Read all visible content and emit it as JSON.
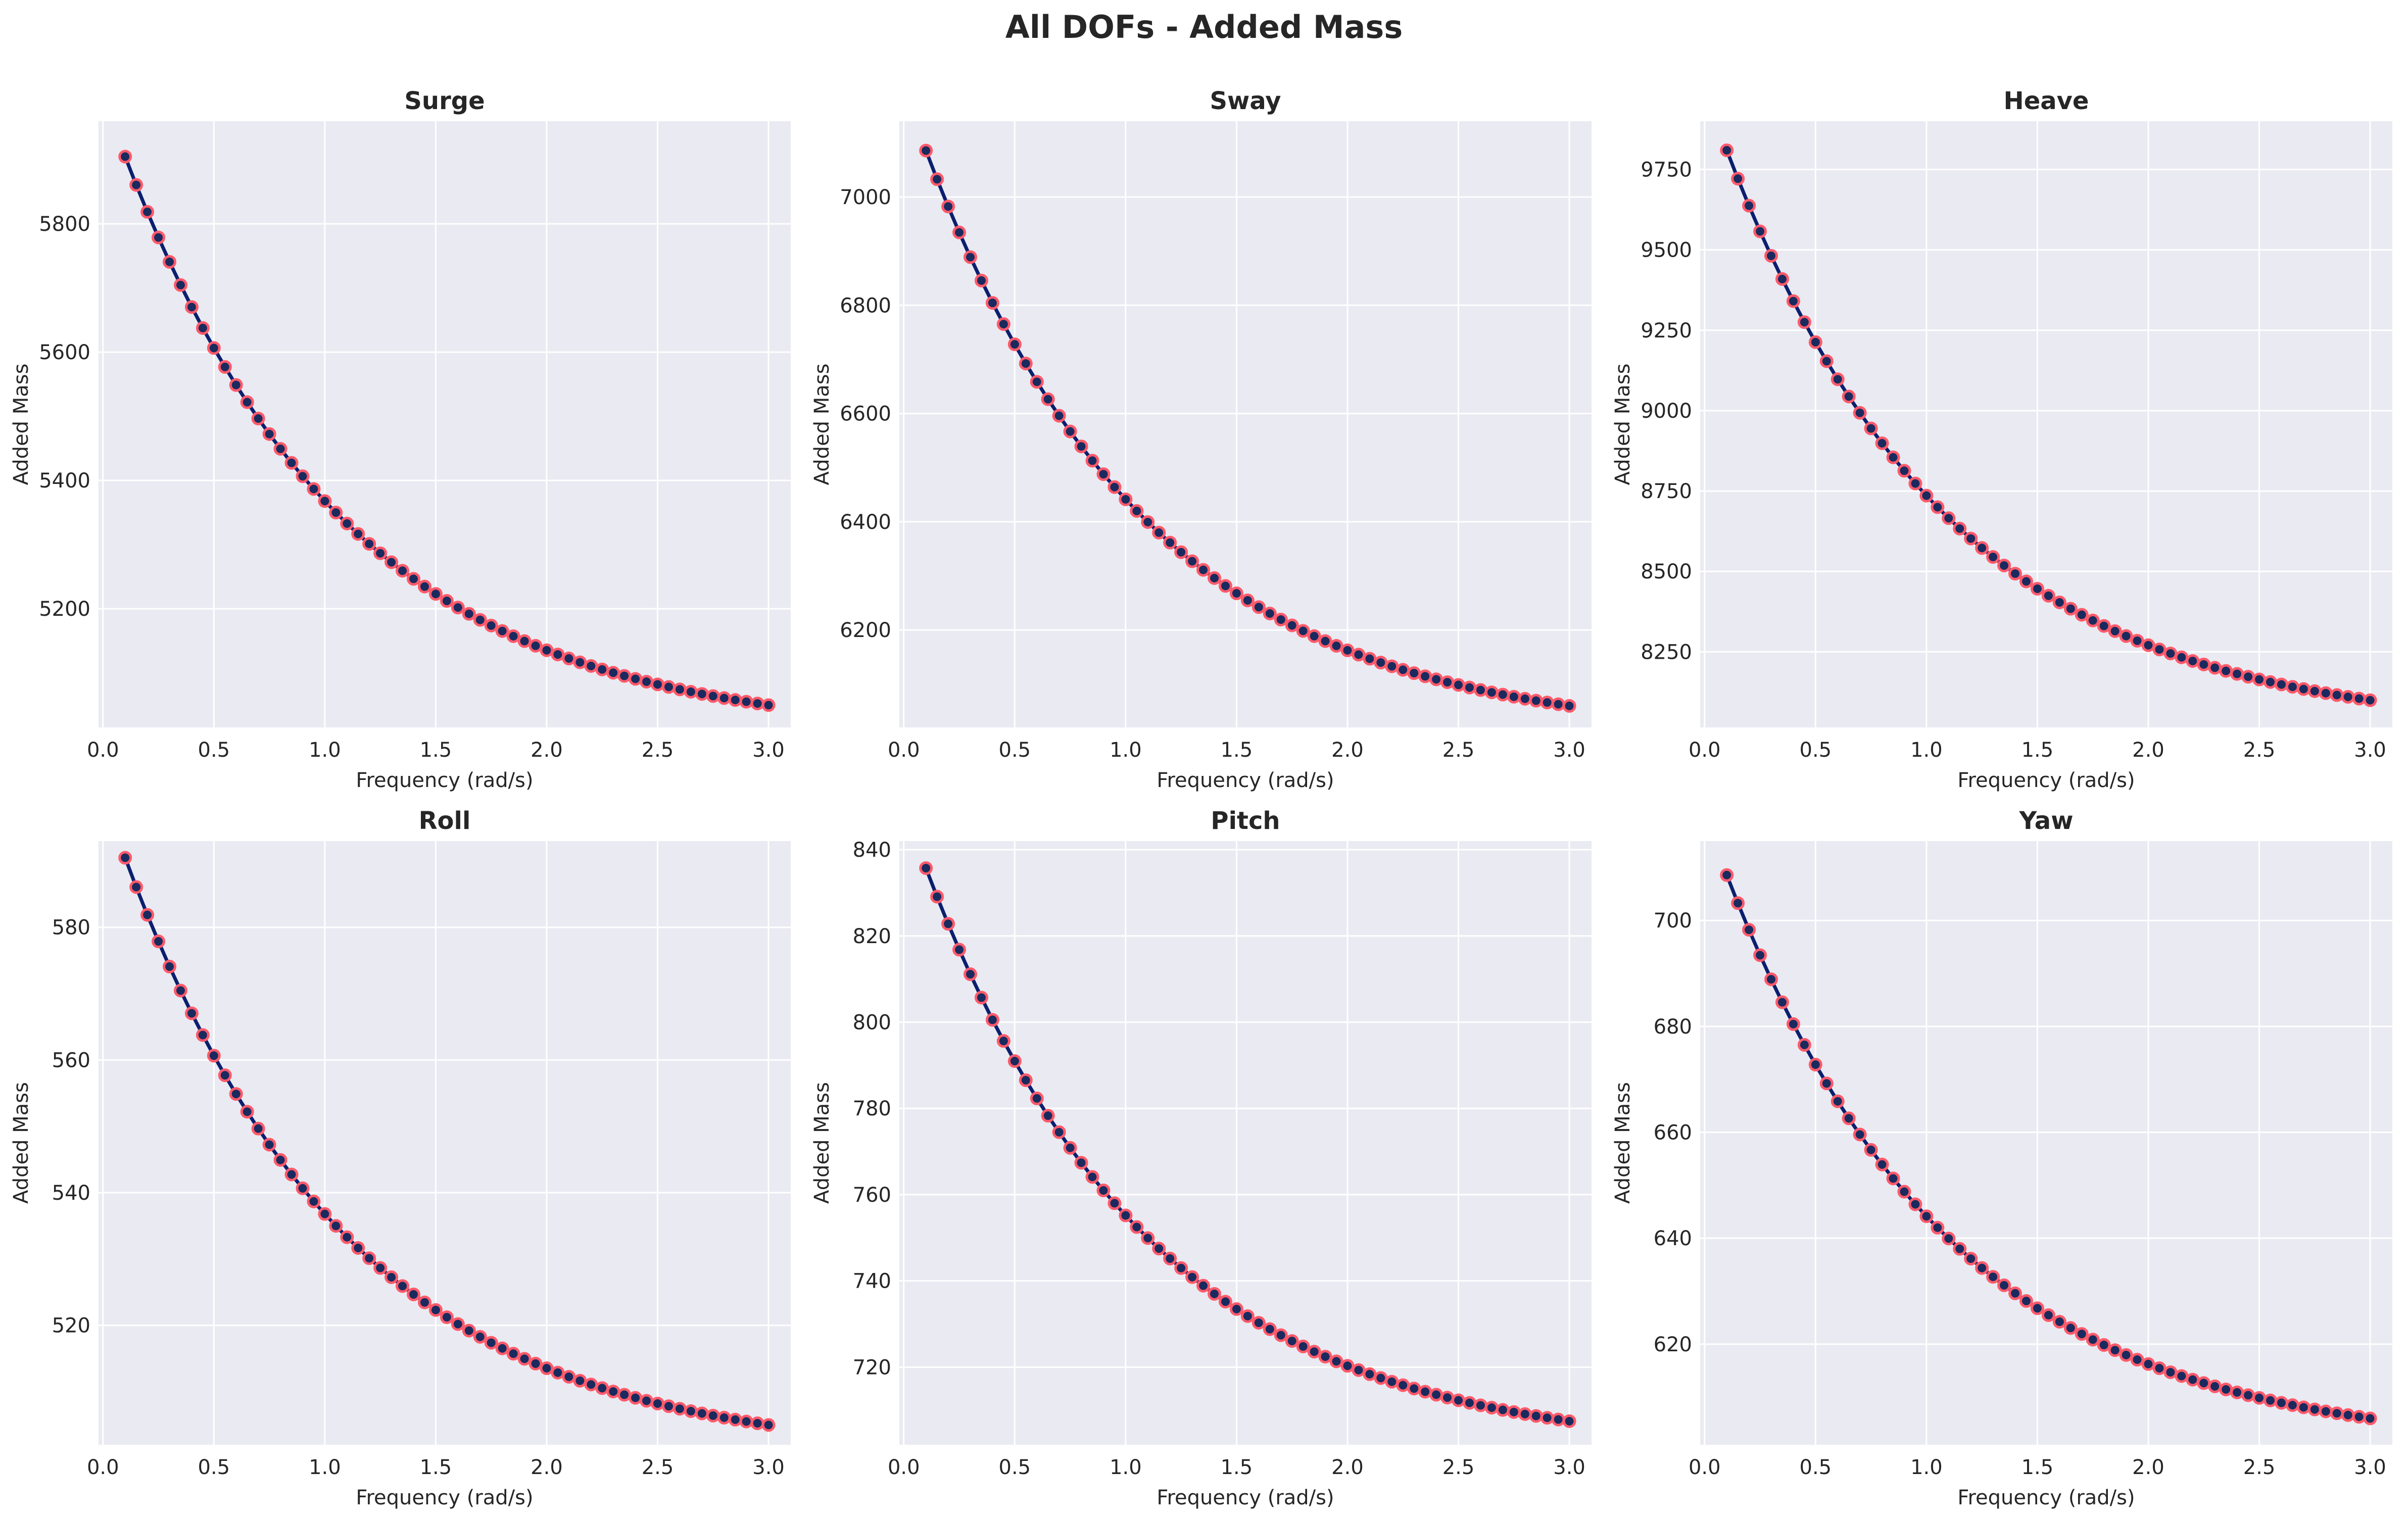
{
  "figure": {
    "title": "All DOFs - Added Mass"
  },
  "style": {
    "panel_bg": "#eaeaf2",
    "grid_color": "#ffffff",
    "line_color": "#0a1f6e",
    "marker_face": "#1a2a5e",
    "marker_edge": "#ff5a6a"
  },
  "chart_data": [
    {
      "type": "line",
      "title": "Surge",
      "xlabel": "Frequency (rad/s)",
      "ylabel": "Added Mass",
      "xlim": [
        -0.02,
        3.1
      ],
      "ylim": [
        5015,
        5960
      ],
      "xticks": [
        0.0,
        0.5,
        1.0,
        1.5,
        2.0,
        2.5,
        3.0
      ],
      "xtick_labels": [
        "0.0",
        "0.5",
        "1.0",
        "1.5",
        "2.0",
        "2.5",
        "3.0"
      ],
      "yticks": [
        5200,
        5400,
        5600,
        5800
      ],
      "ytick_labels": [
        "5200",
        "5400",
        "5600",
        "5800"
      ],
      "grid": true,
      "legend": "none",
      "x_range": [
        0.1,
        3.0
      ],
      "n_points": 59,
      "model": {
        "y_inf": 5000,
        "amplitude": 1000,
        "decay": 1.0
      },
      "y_start": 5905,
      "y_end": 5050
    },
    {
      "type": "line",
      "title": "Sway",
      "xlabel": "Frequency (rad/s)",
      "ylabel": "Added Mass",
      "xlim": [
        -0.02,
        3.1
      ],
      "ylim": [
        6020,
        7140
      ],
      "xticks": [
        0.0,
        0.5,
        1.0,
        1.5,
        2.0,
        2.5,
        3.0
      ],
      "xtick_labels": [
        "0.0",
        "0.5",
        "1.0",
        "1.5",
        "2.0",
        "2.5",
        "3.0"
      ],
      "yticks": [
        6200,
        6400,
        6600,
        6800,
        7000
      ],
      "ytick_labels": [
        "6200",
        "6400",
        "6600",
        "6800",
        "7000"
      ],
      "grid": true,
      "legend": "none",
      "x_range": [
        0.1,
        3.0
      ],
      "n_points": 59,
      "model": {
        "y_inf": 6000,
        "amplitude": 1200,
        "decay": 1.0
      },
      "y_start": 7086,
      "y_end": 6060
    },
    {
      "type": "line",
      "title": "Heave",
      "xlabel": "Frequency (rad/s)",
      "ylabel": "Added Mass",
      "xlim": [
        -0.02,
        3.1
      ],
      "ylim": [
        8015,
        9900
      ],
      "xticks": [
        0.0,
        0.5,
        1.0,
        1.5,
        2.0,
        2.5,
        3.0
      ],
      "xtick_labels": [
        "0.0",
        "0.5",
        "1.0",
        "1.5",
        "2.0",
        "2.5",
        "3.0"
      ],
      "yticks": [
        8250,
        8500,
        8750,
        9000,
        9250,
        9500,
        9750
      ],
      "ytick_labels": [
        "8250",
        "8500",
        "8750",
        "9000",
        "9250",
        "9500",
        "9750"
      ],
      "grid": true,
      "legend": "none",
      "x_range": [
        0.1,
        3.0
      ],
      "n_points": 59,
      "model": {
        "y_inf": 8000,
        "amplitude": 2000,
        "decay": 1.0
      },
      "y_start": 9810,
      "y_end": 8100
    },
    {
      "type": "line",
      "title": "Roll",
      "xlabel": "Frequency (rad/s)",
      "ylabel": "Added Mass",
      "xlim": [
        -0.02,
        3.1
      ],
      "ylim": [
        502,
        593
      ],
      "xticks": [
        0.0,
        0.5,
        1.0,
        1.5,
        2.0,
        2.5,
        3.0
      ],
      "xtick_labels": [
        "0.0",
        "0.5",
        "1.0",
        "1.5",
        "2.0",
        "2.5",
        "3.0"
      ],
      "yticks": [
        520,
        540,
        560,
        580
      ],
      "ytick_labels": [
        "520",
        "540",
        "560",
        "580"
      ],
      "grid": true,
      "legend": "none",
      "x_range": [
        0.1,
        3.0
      ],
      "n_points": 59,
      "model": {
        "y_inf": 500,
        "amplitude": 100,
        "decay": 1.0
      },
      "y_start": 590.5,
      "y_end": 505
    },
    {
      "type": "line",
      "title": "Pitch",
      "xlabel": "Frequency (rad/s)",
      "ylabel": "Added Mass",
      "xlim": [
        -0.02,
        3.1
      ],
      "ylim": [
        702,
        842
      ],
      "xticks": [
        0.0,
        0.5,
        1.0,
        1.5,
        2.0,
        2.5,
        3.0
      ],
      "xtick_labels": [
        "0.0",
        "0.5",
        "1.0",
        "1.5",
        "2.0",
        "2.5",
        "3.0"
      ],
      "yticks": [
        720,
        740,
        760,
        780,
        800,
        820,
        840
      ],
      "ytick_labels": [
        "720",
        "740",
        "760",
        "780",
        "800",
        "820",
        "840"
      ],
      "grid": true,
      "legend": "none",
      "x_range": [
        0.1,
        3.0
      ],
      "n_points": 59,
      "model": {
        "y_inf": 700,
        "amplitude": 150,
        "decay": 1.0
      },
      "y_start": 835.7,
      "y_end": 707.5
    },
    {
      "type": "line",
      "title": "Yaw",
      "xlabel": "Frequency (rad/s)",
      "ylabel": "Added Mass",
      "xlim": [
        -0.02,
        3.1
      ],
      "ylim": [
        601,
        715
      ],
      "xticks": [
        0.0,
        0.5,
        1.0,
        1.5,
        2.0,
        2.5,
        3.0
      ],
      "xtick_labels": [
        "0.0",
        "0.5",
        "1.0",
        "1.5",
        "2.0",
        "2.5",
        "3.0"
      ],
      "yticks": [
        620,
        640,
        660,
        680,
        700
      ],
      "ytick_labels": [
        "620",
        "640",
        "660",
        "680",
        "700"
      ],
      "grid": true,
      "legend": "none",
      "x_range": [
        0.1,
        3.0
      ],
      "n_points": 59,
      "model": {
        "y_inf": 600,
        "amplitude": 120,
        "decay": 1.0
      },
      "y_start": 708.6,
      "y_end": 606
    }
  ]
}
